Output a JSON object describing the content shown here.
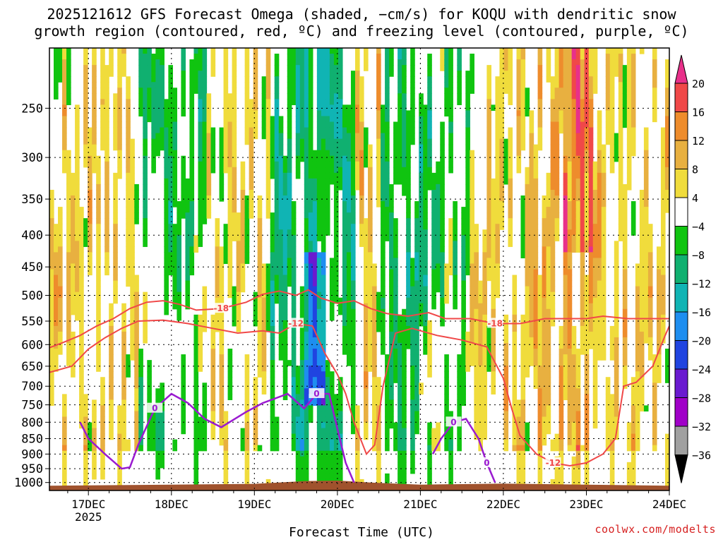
{
  "title_line1": "2025121612 GFS Forecast Omega (shaded, −cm/s) for KOQU with dendritic snow",
  "title_line2": "growth region (contoured, red, ºC) and freezing level (contoured, purple, ºC)",
  "credit": "coolwx.com/modelts",
  "colors": {
    "dendritic_contour": "#f04848",
    "freezing_contour": "#9a1ad0",
    "ground": "#a0522d",
    "grid": "#000000"
  },
  "chart_data": {
    "type": "heatmap",
    "title": "2025121612 GFS Forecast Omega (shaded, −cm/s) for KOQU with dendritic snow growth region (contoured, red, ºC) and freezing level (contoured, purple, ºC)",
    "xlabel": "Forecast Time (UTC)",
    "ylabel": "",
    "x_ticks": [
      {
        "value": "17DEC",
        "sublabel": "2025"
      },
      {
        "value": "18DEC",
        "sublabel": ""
      },
      {
        "value": "19DEC",
        "sublabel": ""
      },
      {
        "value": "20DEC",
        "sublabel": ""
      },
      {
        "value": "21DEC",
        "sublabel": ""
      },
      {
        "value": "22DEC",
        "sublabel": ""
      },
      {
        "value": "23DEC",
        "sublabel": ""
      },
      {
        "value": "24DEC",
        "sublabel": ""
      }
    ],
    "x_range_days": [
      16.53,
      24.0
    ],
    "y_ticks": [
      250,
      300,
      350,
      400,
      450,
      500,
      550,
      600,
      650,
      700,
      750,
      800,
      850,
      900,
      950,
      1000
    ],
    "y_range_hpa": [
      200,
      1030
    ],
    "y_scale": "log",
    "grid": true,
    "colorbar": {
      "labels": [
        "20",
        "16",
        "12",
        "8",
        "4",
        "−4",
        "−8",
        "−12",
        "−16",
        "−20",
        "−24",
        "−28",
        "−32",
        "−36"
      ],
      "bins": [
        {
          "range": ">20",
          "color": "#e8308a"
        },
        {
          "range": "16 to 20",
          "color": "#f04848"
        },
        {
          "range": "12 to 16",
          "color": "#ee8c2c"
        },
        {
          "range": "8 to 12",
          "color": "#e8b040"
        },
        {
          "range": "4 to 8",
          "color": "#f0dc3c"
        },
        {
          "range": "-4 to 4",
          "color": "#ffffff"
        },
        {
          "range": "-8 to -4",
          "color": "#10c410"
        },
        {
          "range": "-12 to -8",
          "color": "#10b070"
        },
        {
          "range": "-16 to -12",
          "color": "#10b4b4"
        },
        {
          "range": "-20 to -16",
          "color": "#1e8ef0"
        },
        {
          "range": "-24 to -20",
          "color": "#2044e0"
        },
        {
          "range": "-28 to -24",
          "color": "#6a1ad0"
        },
        {
          "range": "-32 to -28",
          "color": "#a000c8"
        },
        {
          "range": "-36 to -32",
          "color": "#a0a0a0"
        },
        {
          "range": "<-36",
          "color": "#000000"
        }
      ]
    },
    "contours": [
      {
        "name": "-18",
        "label": "-18",
        "series": "dendritic",
        "points": [
          [
            16.53,
            607
          ],
          [
            16.7,
            595
          ],
          [
            16.9,
            580
          ],
          [
            17.1,
            560
          ],
          [
            17.3,
            545
          ],
          [
            17.5,
            525
          ],
          [
            17.7,
            513
          ],
          [
            17.9,
            510
          ],
          [
            18.1,
            517
          ],
          [
            18.3,
            528
          ],
          [
            18.6,
            525
          ],
          [
            18.9,
            513
          ],
          [
            19.1,
            498
          ],
          [
            19.3,
            492
          ],
          [
            19.5,
            500
          ],
          [
            19.65,
            490
          ],
          [
            19.8,
            505
          ],
          [
            20.0,
            515
          ],
          [
            20.2,
            510
          ],
          [
            20.4,
            525
          ],
          [
            20.6,
            535
          ],
          [
            20.85,
            540
          ],
          [
            21.1,
            533
          ],
          [
            21.3,
            545
          ],
          [
            21.6,
            545
          ],
          [
            21.9,
            555
          ],
          [
            22.2,
            555
          ],
          [
            22.5,
            545
          ],
          [
            22.8,
            545
          ],
          [
            23.0,
            545
          ],
          [
            23.2,
            540
          ],
          [
            23.5,
            545
          ],
          [
            23.8,
            545
          ],
          [
            24.0,
            545
          ]
        ]
      },
      {
        "name": "-12",
        "label": "-12",
        "series": "dendritic",
        "points": [
          [
            16.53,
            665
          ],
          [
            16.8,
            650
          ],
          [
            17.0,
            610
          ],
          [
            17.2,
            585
          ],
          [
            17.4,
            565
          ],
          [
            17.6,
            550
          ],
          [
            17.9,
            548
          ],
          [
            18.2,
            555
          ],
          [
            18.5,
            565
          ],
          [
            18.8,
            575
          ],
          [
            19.1,
            570
          ],
          [
            19.3,
            575
          ],
          [
            19.5,
            555
          ],
          [
            19.7,
            560
          ],
          [
            19.85,
            620
          ],
          [
            20.0,
            670
          ],
          [
            20.1,
            720
          ],
          [
            20.2,
            800
          ],
          [
            20.35,
            900
          ],
          [
            20.45,
            870
          ],
          [
            20.55,
            700
          ],
          [
            20.7,
            575
          ],
          [
            20.9,
            565
          ],
          [
            21.2,
            580
          ],
          [
            21.5,
            590
          ],
          [
            21.8,
            605
          ],
          [
            22.0,
            680
          ],
          [
            22.1,
            760
          ],
          [
            22.2,
            840
          ],
          [
            22.4,
            900
          ],
          [
            22.6,
            930
          ],
          [
            22.8,
            940
          ],
          [
            23.0,
            930
          ],
          [
            23.2,
            900
          ],
          [
            23.35,
            850
          ],
          [
            23.45,
            700
          ],
          [
            23.6,
            690
          ],
          [
            23.8,
            650
          ],
          [
            23.95,
            580
          ],
          [
            24.0,
            560
          ]
        ]
      },
      {
        "name": "0",
        "label": "0",
        "series": "freezing",
        "points": [
          [
            16.9,
            800
          ],
          [
            17.0,
            850
          ],
          [
            17.2,
            900
          ],
          [
            17.4,
            950
          ],
          [
            17.5,
            945
          ],
          [
            17.6,
            870
          ],
          [
            17.8,
            760
          ],
          [
            18.0,
            720
          ],
          [
            18.2,
            745
          ],
          [
            18.4,
            790
          ],
          [
            18.6,
            815
          ],
          [
            18.9,
            770
          ],
          [
            19.1,
            745
          ],
          [
            19.4,
            720
          ],
          [
            19.6,
            760
          ],
          [
            19.75,
            720
          ],
          [
            19.9,
            720
          ],
          [
            20.0,
            820
          ],
          [
            20.1,
            930
          ],
          [
            20.2,
            1000
          ]
        ]
      },
      {
        "name": "0",
        "label": "0",
        "series": "freezing",
        "points": [
          [
            21.15,
            900
          ],
          [
            21.25,
            850
          ],
          [
            21.4,
            800
          ],
          [
            21.55,
            790
          ],
          [
            21.7,
            850
          ],
          [
            21.8,
            930
          ],
          [
            21.9,
            1000
          ]
        ]
      }
    ],
    "terrain": "ground surface near 1000 hPa (brown fill)"
  }
}
